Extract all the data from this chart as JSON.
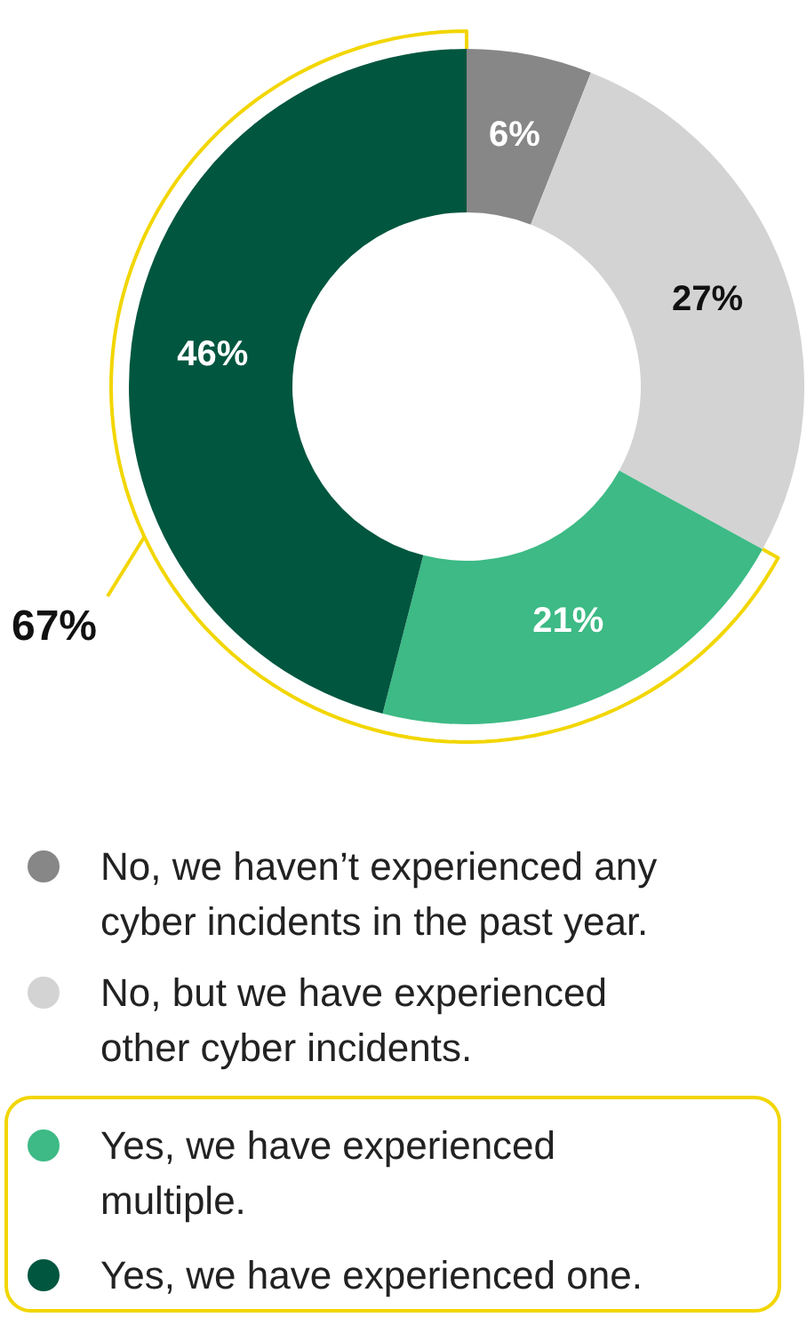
{
  "chart_data": {
    "type": "donut",
    "categories": [
      "No, we haven’t experienced any cyber incidents in the past year.",
      "No, but we have experienced other cyber incidents.",
      "Yes, we have experienced multiple.",
      "Yes, we have experienced one."
    ],
    "values": [
      6,
      27,
      21,
      46
    ],
    "colors": [
      "#878787",
      "#d3d3d3",
      "#3dba85",
      "#00563f"
    ],
    "value_labels": [
      "6%",
      "27%",
      "21%",
      "46%"
    ],
    "legend": "bottom",
    "annotations": [
      "67%"
    ]
  }
}
